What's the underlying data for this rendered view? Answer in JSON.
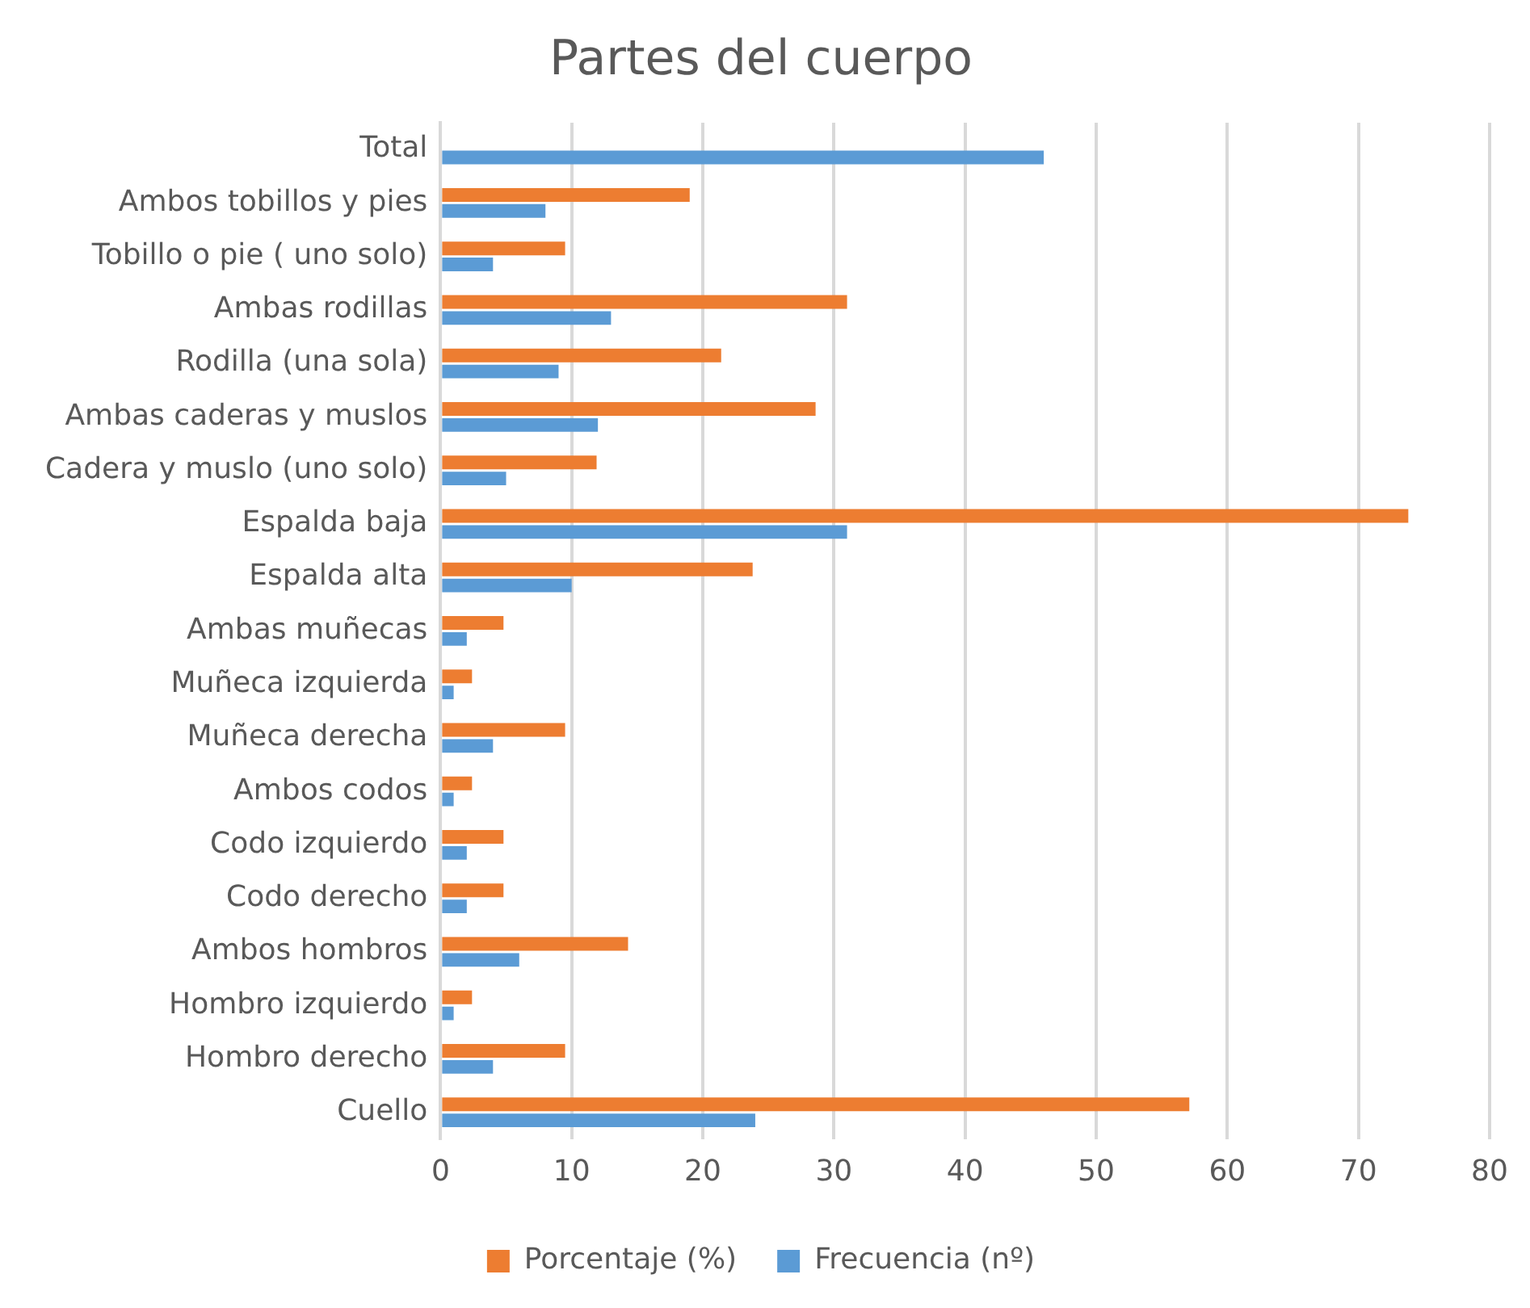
{
  "chart_data": {
    "type": "bar",
    "orientation": "horizontal",
    "title": "Partes del cuerpo",
    "categories": [
      "Total",
      "Ambos tobillos y pies",
      "Tobillo o pie ( uno solo)",
      "Ambas rodillas",
      "Rodilla (una sola)",
      "Ambas caderas y muslos",
      "Cadera y muslo (uno solo)",
      "Espalda baja",
      "Espalda alta",
      "Ambas muñecas",
      "Muñeca izquierda",
      "Muñeca derecha",
      "Ambos codos",
      "Codo izquierdo",
      "Codo derecho",
      "Ambos hombros",
      "Hombro izquierdo",
      "Hombro derecho",
      "Cuello"
    ],
    "series": [
      {
        "name": "Porcentaje (%)",
        "color": "#ed7d31",
        "values": [
          null,
          19.0,
          9.5,
          31.0,
          21.4,
          28.6,
          11.9,
          73.8,
          23.8,
          4.8,
          2.4,
          9.5,
          2.4,
          4.8,
          4.8,
          14.3,
          2.4,
          9.5,
          57.1
        ]
      },
      {
        "name": "Frecuencia (nº)",
        "color": "#5b9bd5",
        "values": [
          46,
          8,
          4,
          13,
          9,
          12,
          5,
          31,
          10,
          2,
          1,
          4,
          1,
          2,
          2,
          6,
          1,
          4,
          24
        ]
      }
    ],
    "xlim": [
      0,
      80
    ],
    "xticks": [
      0,
      10,
      20,
      30,
      40,
      50,
      60,
      70,
      80
    ],
    "grid": "x",
    "legend": "bottom"
  }
}
